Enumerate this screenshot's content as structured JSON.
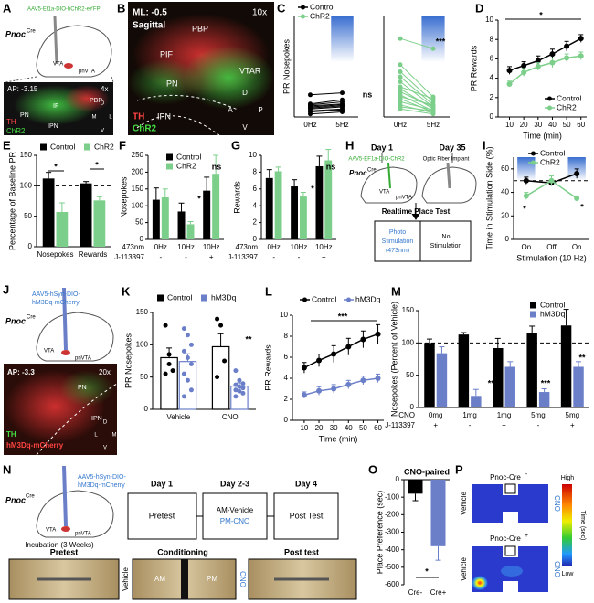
{
  "figures": [
    {
      "panel": "A",
      "labels": [
        "AAV5-Ef1a-DIO-hChR2-eYFP",
        "Pnoc",
        "Cre",
        "VTA",
        "pnVTA",
        "AP: -3.15",
        "4x",
        "PBP",
        "IF",
        "PN",
        "IPN",
        "TH",
        "ChR2",
        "D",
        "V",
        "M",
        "L"
      ]
    },
    {
      "panel": "B",
      "labels": [
        "ML: -0.5",
        "Sagittal",
        "10x",
        "PBP",
        "PIF",
        "VTAR",
        "PN",
        "IPN",
        "TH",
        "ChR2",
        "D",
        "V",
        "A",
        "P"
      ]
    },
    {
      "panel": "H",
      "labels": [
        "Day 1",
        "Day 35",
        "AAV5-EF1a-DIO-ChR2",
        "Optic Fiber Implant",
        "Pnoc",
        "Cre",
        "VTA",
        "pnVTA",
        "Realtime Place Test",
        "Photo",
        "Stimulation",
        "(473nm)",
        "No",
        "Stimulation"
      ]
    },
    {
      "panel": "J",
      "labels": [
        "AAV5-hSyn-DIO-",
        "hM3Dq-mCherry",
        "Pnoc",
        "Cre",
        "VTA",
        "pnVTA",
        "AP: -3.3",
        "20x",
        "PN",
        "IPN",
        "TH",
        "hM3Dq-mCherry",
        "D",
        "V",
        "L",
        "M"
      ]
    },
    {
      "panel": "N",
      "labels": [
        "AAV5-hSyn-DIO-",
        "hM3Dq-mCherry",
        "Pnoc",
        "Cre",
        "VTA",
        "pnVTA",
        "Incubation (3 Weeks)",
        "Day 1",
        "Day 2-3",
        "Day 4",
        "Pretest",
        "AM-Vehicle",
        "PM-CNO",
        "Post Test",
        "Pretest",
        "Conditioning",
        "Post test",
        "Vehicle",
        "CNO",
        "AM",
        "PM"
      ]
    },
    {
      "panel": "P",
      "labels": [
        "Pnoc-Cre",
        "-",
        "Vehicle",
        "CNO",
        "Pnoc-Cre",
        "+",
        "Vehicle",
        "CNO",
        "High",
        "Time (sec)",
        "Low"
      ]
    }
  ],
  "chart_data": [
    {
      "type": "paired",
      "panel": "C",
      "y_label": "PR Nosepokes",
      "categories": [
        "0Hz",
        "5Hz"
      ],
      "ylim": [
        0,
        100
      ],
      "series": [
        {
          "name": "Control",
          "color": "#000000",
          "subjects": [
            [
              3,
              5
            ],
            [
              5,
              7
            ],
            [
              6,
              8
            ],
            [
              8,
              10
            ],
            [
              9,
              11
            ],
            [
              10,
              12
            ],
            [
              11,
              13
            ],
            [
              12,
              15
            ],
            [
              13,
              17
            ],
            [
              22,
              24
            ]
          ]
        }
      ],
      "annotations": [
        "ns"
      ]
    },
    {
      "type": "paired",
      "categories": [
        "0Hz",
        "5Hz"
      ],
      "ylim": [
        0,
        100
      ],
      "series": [
        {
          "name": "ChR2",
          "color": "#7ccf8a",
          "subjects": [
            [
              78,
              68
            ],
            [
              52,
              20
            ],
            [
              45,
              15
            ],
            [
              40,
              12
            ],
            [
              35,
              10
            ],
            [
              30,
              18
            ],
            [
              28,
              8
            ],
            [
              25,
              10
            ],
            [
              22,
              6
            ],
            [
              20,
              12
            ],
            [
              18,
              5
            ],
            [
              15,
              7
            ],
            [
              12,
              4
            ],
            [
              10,
              6
            ],
            [
              8,
              3
            ]
          ]
        }
      ],
      "annotations": [
        "***"
      ]
    },
    {
      "type": "line",
      "panel": "D",
      "y_label": "PR Rewards",
      "x_label": "Time (min)",
      "x": [
        10,
        20,
        30,
        40,
        50,
        60
      ],
      "xlim": [
        2,
        64
      ],
      "xticks": [
        10,
        20,
        30,
        40,
        50,
        60
      ],
      "ylim": [
        0,
        10
      ],
      "yticks": [
        0,
        2,
        4,
        6,
        8,
        10
      ],
      "series": [
        {
          "name": "Control",
          "color": "#000000",
          "values": [
            4.8,
            5.3,
            5.8,
            6.5,
            7.3,
            8.1
          ],
          "errors": [
            0.4,
            0.4,
            0.5,
            0.5,
            0.5,
            0.4
          ]
        },
        {
          "name": "ChR2",
          "color": "#7ccf8a",
          "values": [
            3.4,
            4.6,
            5.2,
            5.6,
            6.1,
            6.3
          ],
          "errors": [
            0.3,
            0.4,
            0.4,
            0.5,
            0.4,
            0.4
          ]
        }
      ],
      "annotations": [
        "*"
      ]
    },
    {
      "type": "bar",
      "panel": "E",
      "y_label": "Percentage of Baseline PR",
      "categories": [
        "Nosepokes",
        "Rewards"
      ],
      "ylim": [
        0,
        150
      ],
      "yticks": [
        0,
        50,
        100,
        150
      ],
      "ref_line": 100,
      "series": [
        {
          "name": "Control",
          "color": "#000000",
          "values": [
            112,
            104
          ],
          "errors": [
            10,
            3
          ]
        },
        {
          "name": "ChR2",
          "color": "#7ccf8a",
          "values": [
            57,
            76
          ],
          "errors": [
            15,
            6
          ]
        }
      ],
      "annotations": [
        "*",
        "*"
      ]
    },
    {
      "type": "bar",
      "panel": "F",
      "y_label": "Nosepokes",
      "categories": [
        "0Hz",
        "10Hz",
        "10Hz"
      ],
      "category_label": "473nm",
      "sub_categories": [
        "-",
        "-",
        "+"
      ],
      "sub_category_label": "J-113397",
      "ylim": [
        0,
        250
      ],
      "yticks": [
        0,
        50,
        100,
        150,
        200,
        250
      ],
      "series": [
        {
          "name": "Control",
          "color": "#000000",
          "values": [
            118,
            83,
            145
          ],
          "errors": [
            35,
            25,
            40
          ]
        },
        {
          "name": "ChR2",
          "color": "#7ccf8a",
          "values": [
            125,
            45,
            195
          ],
          "errors": [
            25,
            8,
            55
          ]
        }
      ],
      "annotations": [
        "*",
        "ns"
      ]
    },
    {
      "type": "bar",
      "panel": "G",
      "y_label": "Rewards",
      "categories": [
        "0Hz",
        "10Hz",
        "10Hz"
      ],
      "category_label": "473nm",
      "sub_categories": [
        "-",
        "-",
        "+"
      ],
      "sub_category_label": "J-113397",
      "ylim": [
        0,
        10
      ],
      "yticks": [
        0,
        2,
        4,
        6,
        8,
        10
      ],
      "series": [
        {
          "name": "Control",
          "color": "#000000",
          "values": [
            7.3,
            6.3,
            8.7
          ],
          "errors": [
            1.0,
            0.8,
            1.2
          ]
        },
        {
          "name": "ChR2",
          "color": "#7ccf8a",
          "values": [
            8.1,
            5.1,
            9.4
          ],
          "errors": [
            0.5,
            0.5,
            1.3
          ]
        }
      ],
      "annotations": [
        "*",
        "ns"
      ]
    },
    {
      "type": "line",
      "panel": "I",
      "y_label": "Time in Stimulation Side (%)",
      "x_label": "Stimulation (10 Hz)",
      "categories": [
        "On",
        "Off",
        "On"
      ],
      "ylim": [
        0,
        70
      ],
      "yticks": [
        0,
        20,
        40,
        60
      ],
      "ref_line": 50,
      "series": [
        {
          "name": "Control",
          "color": "#000000",
          "values": [
            50,
            48,
            56
          ],
          "errors": [
            3,
            2,
            4
          ]
        },
        {
          "name": "ChR2",
          "color": "#7ccf8a",
          "values": [
            37,
            50,
            35
          ],
          "errors": [
            3,
            4,
            2
          ]
        }
      ],
      "annotations": [
        "*",
        "*"
      ]
    },
    {
      "type": "bar",
      "panel": "K",
      "hollow": true,
      "y_label": "PR Nosepokes",
      "categories": [
        "Vehicle",
        "CNO"
      ],
      "ylim": [
        0,
        150
      ],
      "yticks": [
        0,
        50,
        100,
        150
      ],
      "series": [
        {
          "name": "Control",
          "color": "#000000",
          "values": [
            80,
            97
          ],
          "errors": [
            15,
            20
          ],
          "points": [
            [
              130,
              85,
              60,
              55,
              70
            ],
            [
              140,
              130,
              75,
              50
            ]
          ]
        },
        {
          "name": "hM3Dq",
          "color": "#6b7fc9",
          "values": [
            74,
            36
          ],
          "errors": [
            12,
            5
          ],
          "points": [
            [
              125,
              115,
              100,
              90,
              80,
              70,
              55,
              45,
              30,
              20
            ],
            [
              60,
              45,
              40,
              38,
              35,
              33,
              30,
              28,
              25,
              20
            ]
          ]
        }
      ],
      "annotations": [
        "**"
      ]
    },
    {
      "type": "line",
      "panel": "L",
      "y_label": "PR Rewards",
      "x_label": "Time (min)",
      "x": [
        10,
        20,
        30,
        40,
        50,
        60
      ],
      "xlim": [
        2,
        64
      ],
      "xticks": [
        10,
        20,
        30,
        40,
        50,
        60
      ],
      "ylim": [
        0,
        10
      ],
      "yticks": [
        0,
        2,
        4,
        6,
        8,
        10
      ],
      "series": [
        {
          "name": "Control",
          "color": "#000000",
          "values": [
            5.0,
            5.7,
            6.3,
            7.0,
            7.7,
            8.2
          ],
          "errors": [
            0.5,
            0.6,
            0.8,
            0.8,
            0.8,
            0.9
          ]
        },
        {
          "name": "hM3Dq",
          "color": "#6b7fc9",
          "values": [
            2.4,
            2.8,
            3.0,
            3.4,
            3.8,
            4.0
          ],
          "errors": [
            0.3,
            0.4,
            0.4,
            0.4,
            0.4,
            0.4
          ]
        }
      ],
      "annotations": [
        "***"
      ]
    },
    {
      "type": "bar",
      "panel": "M",
      "y_label": "Nosepokes (Percent of Vehicle)",
      "categories": [
        "0mg",
        "1mg",
        "1mg",
        "5mg",
        "5mg"
      ],
      "category_label": "CNO",
      "sub_categories": [
        "+",
        "-",
        "+",
        "-",
        "+"
      ],
      "sub_category_label": "J-113397",
      "ylim": [
        0,
        150
      ],
      "yticks": [
        0,
        50,
        100,
        150
      ],
      "ref_line": 100,
      "series": [
        {
          "name": "Control",
          "color": "#000000",
          "values": [
            100,
            113,
            92,
            116,
            127
          ],
          "errors": [
            6,
            3,
            15,
            10,
            25
          ]
        },
        {
          "name": "hM3Dq",
          "color": "#6b7fc9",
          "values": [
            84,
            18,
            63,
            24,
            63
          ],
          "errors": [
            10,
            10,
            8,
            5,
            8
          ]
        }
      ],
      "annotations": [
        "***",
        "***",
        "**"
      ]
    },
    {
      "type": "bar",
      "panel": "O",
      "title": "CNO-paired",
      "y_label": "Place Preference (sec)",
      "categories": [
        "Cre-",
        "Cre+"
      ],
      "ylim": [
        -600,
        0
      ],
      "yticks": [
        0,
        -100,
        -200,
        -300,
        -400,
        -500,
        -600
      ],
      "series": [
        {
          "colors": [
            "#000000",
            "#6b7fc9"
          ],
          "values": [
            -80,
            -380
          ],
          "errors": [
            40,
            80
          ]
        }
      ],
      "annotations": [
        "*"
      ]
    }
  ]
}
